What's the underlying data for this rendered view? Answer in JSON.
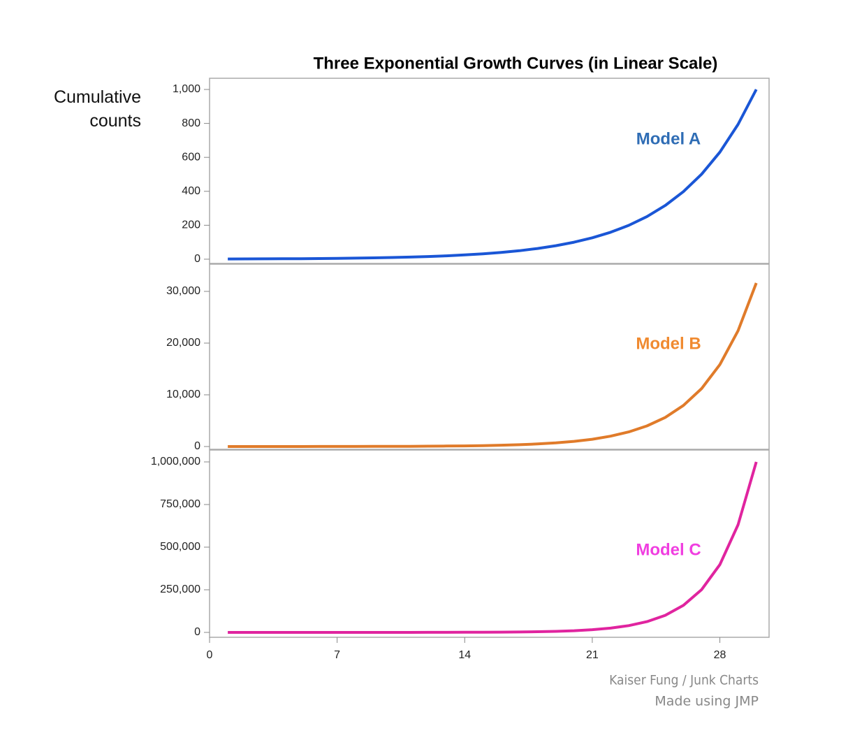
{
  "chart_data": [
    {
      "type": "line",
      "title": "Three Exponential Growth Curves (in Linear Scale)",
      "y_label": "Cumulative counts",
      "x": [
        1,
        2,
        3,
        4,
        5,
        6,
        7,
        8,
        9,
        10,
        11,
        12,
        13,
        14,
        15,
        16,
        17,
        18,
        19,
        20,
        21,
        22,
        23,
        24,
        25,
        26,
        27,
        28,
        29,
        30
      ],
      "series": [
        {
          "name": "Model A",
          "color": "#1a56d6",
          "label_color": "#2f6db5",
          "values": [
            1.3,
            1.6,
            2,
            2.5,
            3.2,
            4,
            5,
            6.3,
            7.9,
            10,
            12.6,
            15.8,
            20,
            25.1,
            31.6,
            39.8,
            50.1,
            63.1,
            79.4,
            100,
            125.9,
            158.5,
            199.5,
            251.2,
            316.2,
            398.1,
            501.2,
            631,
            794.3,
            1000
          ]
        }
      ],
      "xlim": [
        0,
        30.7
      ],
      "ylim": [
        -25,
        1066
      ],
      "yticks": [
        0,
        200,
        400,
        600,
        800,
        {
          "value": 1000,
          "label": "1,000"
        }
      ]
    },
    {
      "type": "line",
      "x": [
        1,
        2,
        3,
        4,
        5,
        6,
        7,
        8,
        9,
        10,
        11,
        12,
        13,
        14,
        15,
        16,
        17,
        18,
        19,
        20,
        21,
        22,
        23,
        24,
        25,
        26,
        27,
        28,
        29,
        30
      ],
      "series": [
        {
          "name": "Model B",
          "color": "#e07b2a",
          "label_color": "#f08a30",
          "values": [
            1.4,
            2,
            2.8,
            4,
            5.6,
            7.9,
            11.2,
            15.8,
            22.4,
            31.6,
            44.7,
            63.1,
            89.1,
            125.9,
            177.8,
            251.2,
            354.8,
            501.2,
            707.9,
            1000,
            1412.5,
            1995.3,
            2818.4,
            3981.1,
            5623.4,
            7943.3,
            11220,
            15849,
            22387,
            31623
          ]
        }
      ],
      "xlim": [
        0,
        30.7
      ],
      "ylim": [
        -540,
        35270
      ],
      "yticks": [
        0,
        {
          "value": 10000,
          "label": "10,000"
        },
        {
          "value": 20000,
          "label": "20,000"
        },
        {
          "value": 30000,
          "label": "30,000"
        }
      ]
    },
    {
      "type": "line",
      "x": [
        1,
        2,
        3,
        4,
        5,
        6,
        7,
        8,
        9,
        10,
        11,
        12,
        13,
        14,
        15,
        16,
        17,
        18,
        19,
        20,
        21,
        22,
        23,
        24,
        25,
        26,
        27,
        28,
        29,
        30
      ],
      "series": [
        {
          "name": "Model C",
          "color": "#e0249f",
          "label_color": "#f03ee0",
          "values": [
            1.6,
            2.5,
            4,
            6.3,
            10,
            15.8,
            25.1,
            39.8,
            63.1,
            100,
            158.5,
            251.2,
            398.1,
            631,
            1000,
            1585,
            2512,
            3981,
            6310,
            10000,
            15849,
            25119,
            39811,
            63096,
            100000,
            158489,
            251189,
            398107,
            630957,
            1000000
          ]
        }
      ],
      "xlim": [
        0,
        30.7
      ],
      "ylim": [
        -28700,
        1069700
      ],
      "yticks": [
        0,
        {
          "value": 250000,
          "label": "250,000"
        },
        {
          "value": 500000,
          "label": "500,000"
        },
        {
          "value": 750000,
          "label": "750,000"
        },
        {
          "value": 1000000,
          "label": "1,000,000"
        }
      ],
      "xticks": [
        0,
        7,
        14,
        21,
        28
      ]
    }
  ],
  "footer": {
    "lines": [
      "Kaiser Fung / Junk Charts",
      "Made using JMP"
    ]
  }
}
